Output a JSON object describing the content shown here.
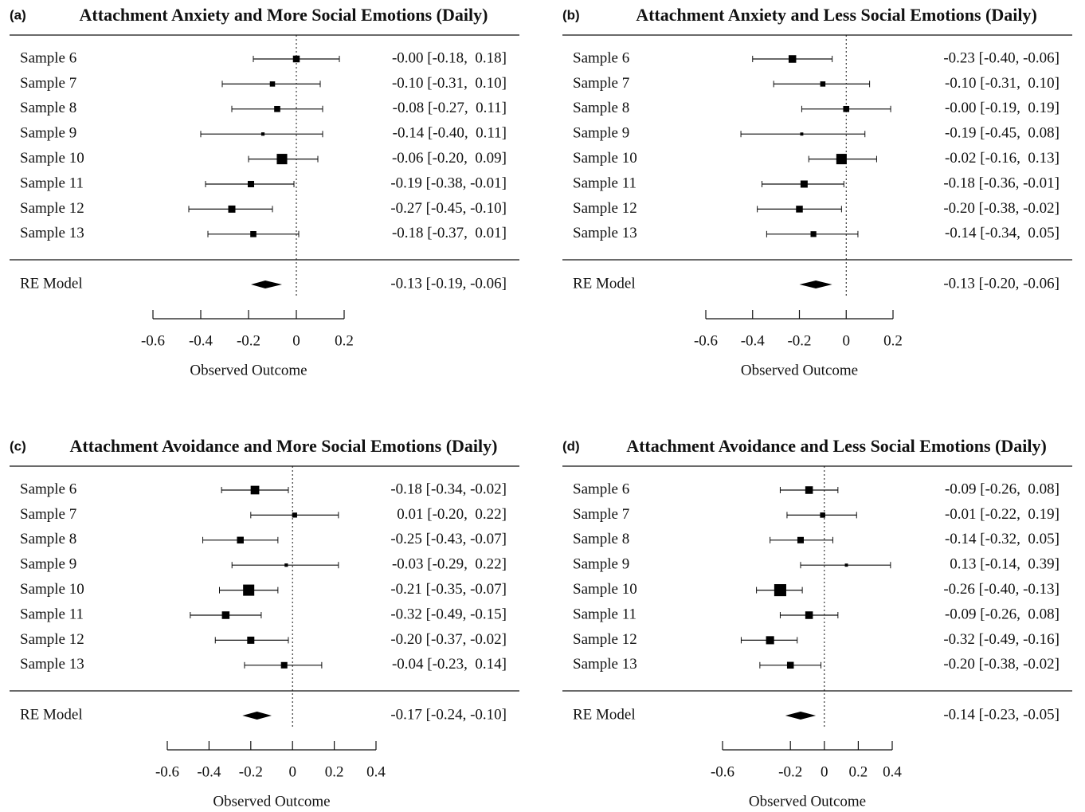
{
  "chart_data": [
    {
      "type": "forest",
      "label": "(a)",
      "title": "Attachment Anxiety and More Social Emotions (Daily)",
      "categories": [
        "Sample 6",
        "Sample 7",
        "Sample 8",
        "Sample 9",
        "Sample 10",
        "Sample 11",
        "Sample 12",
        "Sample 13"
      ],
      "values": [
        0,
        -0.1,
        -0.08,
        -0.14,
        -0.06,
        -0.19,
        -0.27,
        -0.18
      ],
      "ci_lower": [
        -0.18,
        -0.31,
        -0.27,
        -0.4,
        -0.2,
        -0.38,
        -0.45,
        -0.37
      ],
      "ci_upper": [
        0.18,
        0.1,
        0.11,
        0.11,
        0.09,
        -0.01,
        -0.1,
        0.01
      ],
      "value_labels": [
        "-0.00 [-0.18,  0.18]",
        "-0.10 [-0.31,  0.10]",
        "-0.08 [-0.27,  0.11]",
        "-0.14 [-0.40,  0.11]",
        "-0.06 [-0.20,  0.09]",
        "-0.19 [-0.38, -0.01]",
        "-0.27 [-0.45, -0.10]",
        "-0.18 [-0.37,  0.01]"
      ],
      "summary": {
        "name": "RE Model",
        "value": -0.13,
        "ci_lower": -0.19,
        "ci_upper": -0.06,
        "value_label": "-0.13 [-0.19, -0.06]"
      },
      "xlabel": "Observed Outcome",
      "xlim": [
        -0.6,
        0.2
      ],
      "xticks": [
        -0.6,
        -0.4,
        -0.2,
        0,
        0.2
      ]
    },
    {
      "type": "forest",
      "label": "(b)",
      "title": "Attachment Anxiety and Less Social Emotions (Daily)",
      "categories": [
        "Sample 6",
        "Sample 7",
        "Sample 8",
        "Sample 9",
        "Sample 10",
        "Sample 11",
        "Sample 12",
        "Sample 13"
      ],
      "values": [
        -0.23,
        -0.1,
        0,
        -0.19,
        -0.02,
        -0.18,
        -0.2,
        -0.14
      ],
      "ci_lower": [
        -0.4,
        -0.31,
        -0.19,
        -0.45,
        -0.16,
        -0.36,
        -0.38,
        -0.34
      ],
      "ci_upper": [
        -0.06,
        0.1,
        0.19,
        0.08,
        0.13,
        -0.01,
        -0.02,
        0.05
      ],
      "value_labels": [
        "-0.23 [-0.40, -0.06]",
        "-0.10 [-0.31,  0.10]",
        "-0.00 [-0.19,  0.19]",
        "-0.19 [-0.45,  0.08]",
        "-0.02 [-0.16,  0.13]",
        "-0.18 [-0.36, -0.01]",
        "-0.20 [-0.38, -0.02]",
        "-0.14 [-0.34,  0.05]"
      ],
      "summary": {
        "name": "RE Model",
        "value": -0.13,
        "ci_lower": -0.2,
        "ci_upper": -0.06,
        "value_label": "-0.13 [-0.20, -0.06]"
      },
      "xlabel": "Observed Outcome",
      "xlim": [
        -0.6,
        0.2
      ],
      "xticks": [
        -0.6,
        -0.4,
        -0.2,
        0,
        0.2
      ]
    },
    {
      "type": "forest",
      "label": "(c)",
      "title": "Attachment Avoidance and More Social Emotions (Daily)",
      "categories": [
        "Sample 6",
        "Sample 7",
        "Sample 8",
        "Sample 9",
        "Sample 10",
        "Sample 11",
        "Sample 12",
        "Sample 13"
      ],
      "values": [
        -0.18,
        0.01,
        -0.25,
        -0.03,
        -0.21,
        -0.32,
        -0.2,
        -0.04
      ],
      "ci_lower": [
        -0.34,
        -0.2,
        -0.43,
        -0.29,
        -0.35,
        -0.49,
        -0.37,
        -0.23
      ],
      "ci_upper": [
        -0.02,
        0.22,
        -0.07,
        0.22,
        -0.07,
        -0.15,
        -0.02,
        0.14
      ],
      "value_labels": [
        "-0.18 [-0.34, -0.02]",
        " 0.01 [-0.20,  0.22]",
        "-0.25 [-0.43, -0.07]",
        "-0.03 [-0.29,  0.22]",
        "-0.21 [-0.35, -0.07]",
        "-0.32 [-0.49, -0.15]",
        "-0.20 [-0.37, -0.02]",
        "-0.04 [-0.23,  0.14]"
      ],
      "summary": {
        "name": "RE Model",
        "value": -0.17,
        "ci_lower": -0.24,
        "ci_upper": -0.1,
        "value_label": "-0.17 [-0.24, -0.10]"
      },
      "xlabel": "Observed Outcome",
      "xlim": [
        -0.6,
        0.4
      ],
      "xticks": [
        -0.6,
        -0.4,
        -0.2,
        0,
        0.2,
        0.4
      ]
    },
    {
      "type": "forest",
      "label": "(d)",
      "title": "Attachment Avoidance and Less Social Emotions (Daily)",
      "categories": [
        "Sample 6",
        "Sample 7",
        "Sample 8",
        "Sample 9",
        "Sample 10",
        "Sample 11",
        "Sample 12",
        "Sample 13"
      ],
      "values": [
        -0.09,
        -0.01,
        -0.14,
        0.13,
        -0.26,
        -0.09,
        -0.32,
        -0.2
      ],
      "ci_lower": [
        -0.26,
        -0.22,
        -0.32,
        -0.14,
        -0.4,
        -0.26,
        -0.49,
        -0.38
      ],
      "ci_upper": [
        0.08,
        0.19,
        0.05,
        0.39,
        -0.13,
        0.08,
        -0.16,
        -0.02
      ],
      "value_labels": [
        "-0.09 [-0.26,  0.08]",
        "-0.01 [-0.22,  0.19]",
        "-0.14 [-0.32,  0.05]",
        " 0.13 [-0.14,  0.39]",
        "-0.26 [-0.40, -0.13]",
        "-0.09 [-0.26,  0.08]",
        "-0.32 [-0.49, -0.16]",
        "-0.20 [-0.38, -0.02]"
      ],
      "summary": {
        "name": "RE Model",
        "value": -0.14,
        "ci_lower": -0.23,
        "ci_upper": -0.05,
        "value_label": "-0.14 [-0.23, -0.05]"
      },
      "xlabel": "Observed Outcome",
      "xlim": [
        -0.6,
        0.4
      ],
      "xticks": [
        -0.6,
        -0.2,
        0,
        0.2,
        0.4
      ]
    }
  ]
}
